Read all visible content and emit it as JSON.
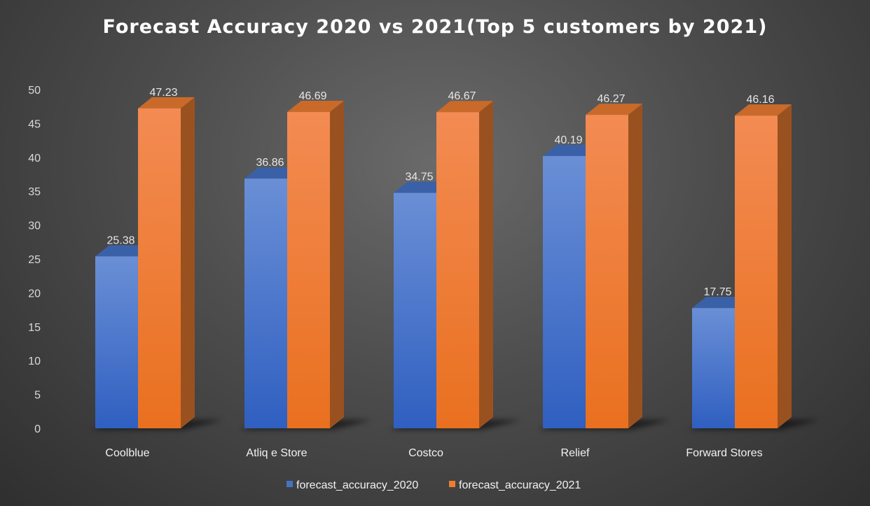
{
  "chart_data": {
    "type": "bar",
    "title": "Forecast Accuracy 2020 vs 2021(Top 5 customers by 2021)",
    "categories": [
      "Coolblue",
      "Atliq e Store",
      "Costco",
      "Relief",
      "Forward Stores"
    ],
    "series": [
      {
        "name": "forecast_accuracy_2020",
        "values": [
          25.38,
          36.86,
          34.75,
          40.19,
          17.75
        ],
        "color": "#4472c4"
      },
      {
        "name": "forecast_accuracy_2021",
        "values": [
          47.23,
          46.69,
          46.67,
          46.27,
          46.16
        ],
        "color": "#ed7d31"
      }
    ],
    "data_labels": [
      [
        "25.38",
        "36.86",
        "34.75",
        "40.19",
        "17.75"
      ],
      [
        "47.23",
        "46.69",
        "46.67",
        "46.27",
        "46.16"
      ]
    ],
    "y_ticks": [
      "0",
      "5",
      "10",
      "15",
      "20",
      "25",
      "30",
      "35",
      "40",
      "45",
      "50"
    ],
    "ylim": [
      0,
      50
    ],
    "xlabel": "",
    "ylabel": "",
    "grid": false,
    "legend": "bottom",
    "style": "3d-column"
  }
}
